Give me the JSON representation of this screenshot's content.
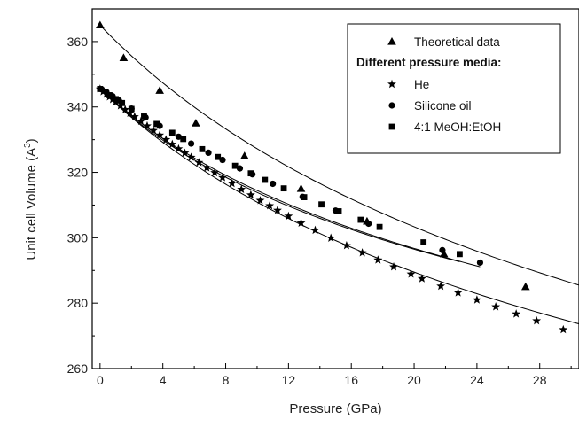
{
  "chart_data": {
    "type": "scatter",
    "xlabel": "Pressure (GPa)",
    "ylabel_main": "Unit cell Volume (A",
    "ylabel_sup": "3",
    "ylabel_close": ")",
    "xlim": [
      -0.5,
      30.5
    ],
    "ylim": [
      260,
      370
    ],
    "xticks": [
      0,
      4,
      8,
      12,
      16,
      20,
      24,
      28
    ],
    "yticks": [
      260,
      280,
      300,
      320,
      340,
      360
    ],
    "legend_heading": "Different pressure media:",
    "legend_position": "top-right",
    "series": [
      {
        "name": "Theoretical data",
        "marker": "triangle",
        "x": [
          0,
          1.5,
          3.8,
          6.1,
          9.2,
          12.8,
          17.0,
          21.9,
          27.1
        ],
        "y": [
          365,
          355,
          345,
          335,
          325,
          315,
          305,
          295,
          285
        ],
        "fit": {
          "v0": 365,
          "k0": 73,
          "kp": 4.0,
          "xmax": 30.5
        }
      },
      {
        "name": "He",
        "marker": "star",
        "x": [
          0,
          0.2,
          0.4,
          0.6,
          0.8,
          1.0,
          1.3,
          1.6,
          1.9,
          2.2,
          2.6,
          3.0,
          3.4,
          3.8,
          4.2,
          4.6,
          5.0,
          5.4,
          5.8,
          6.3,
          6.8,
          7.3,
          7.8,
          8.4,
          9.0,
          9.6,
          10.2,
          10.8,
          11.3,
          12.0,
          12.8,
          13.7,
          14.7,
          15.7,
          16.7,
          17.7,
          18.7,
          19.8,
          20.5,
          21.7,
          22.8,
          24.0,
          25.2,
          26.5,
          27.8,
          29.5
        ],
        "y": [
          345.5,
          344.7,
          343.9,
          343.1,
          342.3,
          341.5,
          340.4,
          339.2,
          338.1,
          337.0,
          335.6,
          334.2,
          332.8,
          331.4,
          330.0,
          328.6,
          327.2,
          325.9,
          324.6,
          323.0,
          321.4,
          319.9,
          318.4,
          316.6,
          314.8,
          313.1,
          311.4,
          309.8,
          308.4,
          306.6,
          304.5,
          302.3,
          299.9,
          297.6,
          295.4,
          293.2,
          291.1,
          288.9,
          287.5,
          285.2,
          283.2,
          281.0,
          278.9,
          276.7,
          274.6,
          271.9
        ],
        "fit": {
          "v0": 345.5,
          "k0": 74,
          "kp": 4.5,
          "xmax": 30.5
        }
      },
      {
        "name": "Silicone oil",
        "marker": "circle",
        "x": [
          0.1,
          0.4,
          0.8,
          1.2,
          2.0,
          2.9,
          3.8,
          5.0,
          5.8,
          6.9,
          7.8,
          8.9,
          9.7,
          11.0,
          12.9,
          15.0,
          17.1,
          21.8,
          24.2
        ],
        "y": [
          345.4,
          344.6,
          343.3,
          342.0,
          339.5,
          336.8,
          334.2,
          330.9,
          328.8,
          326.0,
          323.8,
          321.2,
          319.4,
          316.5,
          312.5,
          308.3,
          304.3,
          296.2,
          292.4
        ],
        "fit": {
          "v0": 345.5,
          "k0": 77,
          "kp": 6.5,
          "xmax": 24.2
        }
      },
      {
        "name": "4:1 MeOH:EtOH",
        "marker": "square",
        "x": [
          0,
          0.6,
          1.0,
          1.4,
          2.0,
          2.8,
          3.6,
          4.6,
          5.3,
          6.5,
          7.5,
          8.6,
          9.6,
          10.5,
          11.7,
          13.0,
          14.1,
          15.2,
          16.6,
          17.8,
          20.6,
          22.9
        ],
        "y": [
          345.5,
          343.6,
          342.4,
          341.2,
          339.4,
          337.1,
          334.8,
          332.1,
          330.2,
          327.1,
          324.7,
          322.0,
          319.7,
          317.7,
          315.1,
          312.4,
          310.2,
          308.1,
          305.5,
          303.3,
          298.6,
          295.0
        ],
        "fit": {
          "v0": 345.5,
          "k0": 73,
          "kp": 7.0,
          "xmax": 22.9
        }
      }
    ]
  }
}
